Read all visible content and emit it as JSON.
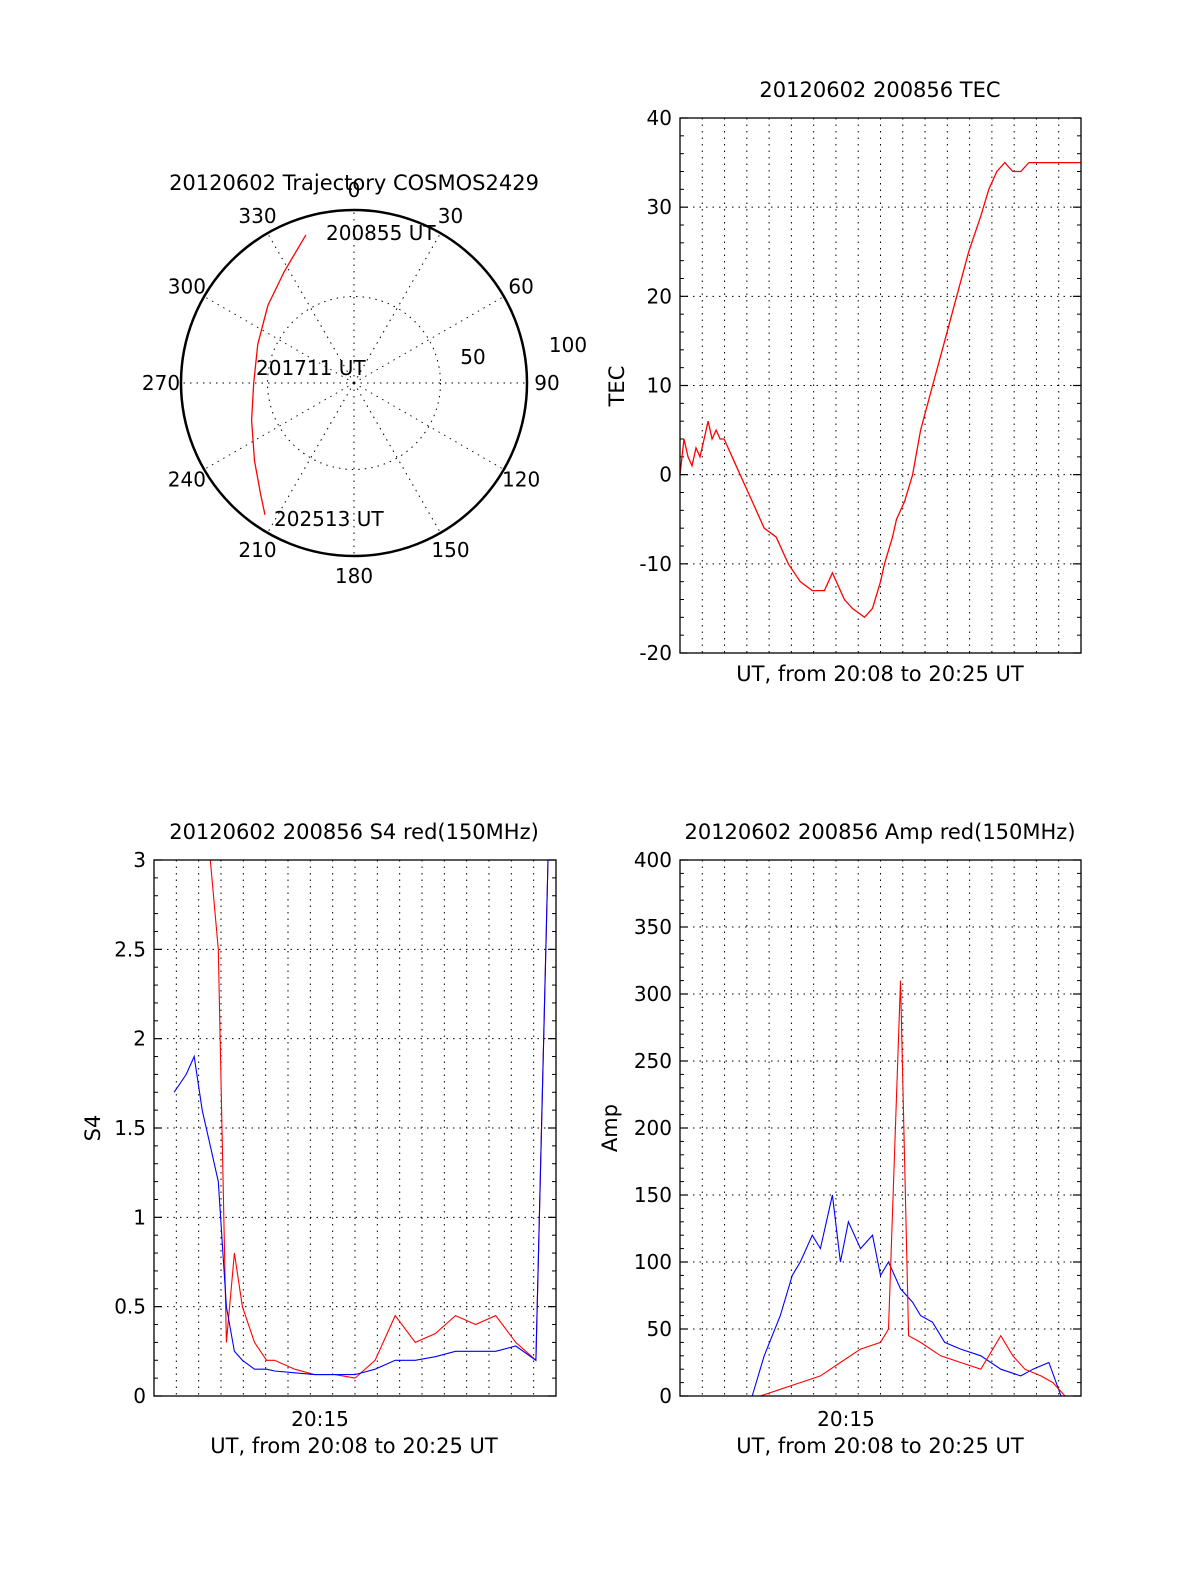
{
  "polar": {
    "title": "20120602 Trajectory COSMOS2429",
    "angle_labels": [
      "0",
      "30",
      "60",
      "90",
      "120",
      "150",
      "180",
      "210",
      "240",
      "270",
      "300",
      "330"
    ],
    "ring_labels": [
      "50",
      "100"
    ],
    "start_label": "200855 UT",
    "mid_label": "201711 UT",
    "end_label": "202513 UT",
    "chart_data": {
      "type": "scatter",
      "projection": "polar",
      "r_max": 100,
      "ring_values": [
        50,
        100
      ],
      "series": [
        {
          "color": "#ff0000",
          "points": [
            {
              "az": 342,
              "r": 90
            },
            {
              "az": 328,
              "r": 76
            },
            {
              "az": 312,
              "r": 67
            },
            {
              "az": 292,
              "r": 60
            },
            {
              "az": 270,
              "r": 58
            },
            {
              "az": 250,
              "r": 63
            },
            {
              "az": 232,
              "r": 73
            },
            {
              "az": 220,
              "r": 84
            },
            {
              "az": 214,
              "r": 92
            }
          ]
        }
      ]
    }
  },
  "tec": {
    "title": "20120602 200856 TEC",
    "xlabel": "UT, from 20:08 to 20:25 UT",
    "ylabel": "TEC",
    "chart_data": {
      "type": "line",
      "xlim": [
        0,
        1
      ],
      "ylim": [
        -20,
        40
      ],
      "yticks": [
        -20,
        -10,
        0,
        10,
        20,
        30,
        40
      ],
      "grid": true,
      "series": [
        {
          "color": "#ff0000",
          "x": [
            0.0,
            0.01,
            0.02,
            0.03,
            0.04,
            0.05,
            0.06,
            0.07,
            0.08,
            0.09,
            0.1,
            0.11,
            0.12,
            0.13,
            0.15,
            0.18,
            0.21,
            0.24,
            0.27,
            0.3,
            0.33,
            0.36,
            0.38,
            0.41,
            0.43,
            0.46,
            0.48,
            0.5,
            0.51,
            0.53,
            0.54,
            0.56,
            0.58,
            0.6,
            0.63,
            0.66,
            0.69,
            0.72,
            0.75,
            0.77,
            0.79,
            0.81,
            0.83,
            0.85,
            0.87,
            0.89,
            0.91,
            0.93,
            0.95,
            0.97,
            0.98,
            1.0
          ],
          "y": [
            0,
            4,
            2,
            1,
            3,
            2,
            4,
            6,
            4,
            5,
            4,
            4,
            3,
            2,
            0,
            -3,
            -6,
            -7,
            -10,
            -12,
            -13,
            -13,
            -11,
            -14,
            -15,
            -16,
            -15,
            -12,
            -10,
            -7,
            -5,
            -3,
            0,
            5,
            10,
            15,
            20,
            25,
            29,
            32,
            34,
            35,
            34,
            34,
            35,
            35,
            35,
            35,
            35,
            35,
            35,
            35
          ]
        }
      ]
    }
  },
  "s4": {
    "title": "20120602 200856 S4 red(150MHz)",
    "xlabel": "UT, from 20:08 to 20:25 UT",
    "ylabel": "S4",
    "xtick_label": "20:15",
    "chart_data": {
      "type": "line",
      "xlim": [
        0,
        1
      ],
      "ylim": [
        0,
        3
      ],
      "yticks": [
        0,
        0.5,
        1,
        1.5,
        2,
        2.5,
        3
      ],
      "yticklabels": [
        "0",
        "0.5",
        "1",
        "1.5",
        "2",
        "2.5",
        "3"
      ],
      "grid": true,
      "series": [
        {
          "color": "#ff0000",
          "x": [
            0.05,
            0.08,
            0.1,
            0.12,
            0.14,
            0.16,
            0.18,
            0.2,
            0.22,
            0.25,
            0.28,
            0.3,
            0.35,
            0.4,
            0.45,
            0.5,
            0.55,
            0.6,
            0.65,
            0.7,
            0.75,
            0.8,
            0.85,
            0.9,
            0.95,
            0.98,
            1.0
          ],
          "y": [
            3,
            3,
            3,
            3,
            3,
            2.5,
            0.3,
            0.8,
            0.5,
            0.3,
            0.2,
            0.2,
            0.15,
            0.12,
            0.12,
            0.1,
            0.2,
            0.45,
            0.3,
            0.35,
            0.45,
            0.4,
            0.45,
            0.3,
            0.2,
            3,
            3
          ]
        },
        {
          "color": "#0000ff",
          "x": [
            0.05,
            0.08,
            0.1,
            0.12,
            0.14,
            0.16,
            0.18,
            0.2,
            0.22,
            0.25,
            0.28,
            0.3,
            0.35,
            0.4,
            0.45,
            0.5,
            0.55,
            0.6,
            0.65,
            0.7,
            0.75,
            0.8,
            0.85,
            0.9,
            0.95,
            0.98,
            1.0
          ],
          "y": [
            1.7,
            1.8,
            1.9,
            1.6,
            1.4,
            1.2,
            0.5,
            0.25,
            0.2,
            0.15,
            0.15,
            0.14,
            0.13,
            0.12,
            0.12,
            0.12,
            0.15,
            0.2,
            0.2,
            0.22,
            0.25,
            0.25,
            0.25,
            0.28,
            0.2,
            3,
            3
          ]
        }
      ]
    }
  },
  "amp": {
    "title": "20120602 200856 Amp red(150MHz)",
    "xlabel": "UT, from 20:08 to 20:25 UT",
    "ylabel": "Amp",
    "xtick_label": "20:15",
    "chart_data": {
      "type": "line",
      "xlim": [
        0,
        1
      ],
      "ylim": [
        0,
        400
      ],
      "yticks": [
        0,
        50,
        100,
        150,
        200,
        250,
        300,
        350,
        400
      ],
      "grid": true,
      "series": [
        {
          "color": "#0000ff",
          "x": [
            0.0,
            0.1,
            0.18,
            0.21,
            0.25,
            0.28,
            0.3,
            0.33,
            0.35,
            0.38,
            0.4,
            0.42,
            0.45,
            0.48,
            0.5,
            0.52,
            0.55,
            0.58,
            0.6,
            0.63,
            0.66,
            0.7,
            0.75,
            0.8,
            0.85,
            0.88,
            0.92,
            0.95,
            1.0
          ],
          "y": [
            0,
            0,
            0,
            30,
            60,
            90,
            100,
            120,
            110,
            150,
            100,
            130,
            110,
            120,
            90,
            100,
            80,
            70,
            60,
            55,
            40,
            35,
            30,
            20,
            15,
            20,
            25,
            0,
            0
          ]
        },
        {
          "color": "#ff0000",
          "x": [
            0.0,
            0.2,
            0.25,
            0.3,
            0.35,
            0.4,
            0.45,
            0.5,
            0.52,
            0.55,
            0.57,
            0.6,
            0.65,
            0.7,
            0.75,
            0.78,
            0.8,
            0.83,
            0.86,
            0.9,
            0.93,
            0.96,
            1.0
          ],
          "y": [
            0,
            0,
            5,
            10,
            15,
            25,
            35,
            40,
            50,
            310,
            45,
            40,
            30,
            25,
            20,
            35,
            45,
            30,
            20,
            15,
            10,
            0,
            0
          ]
        }
      ]
    }
  }
}
